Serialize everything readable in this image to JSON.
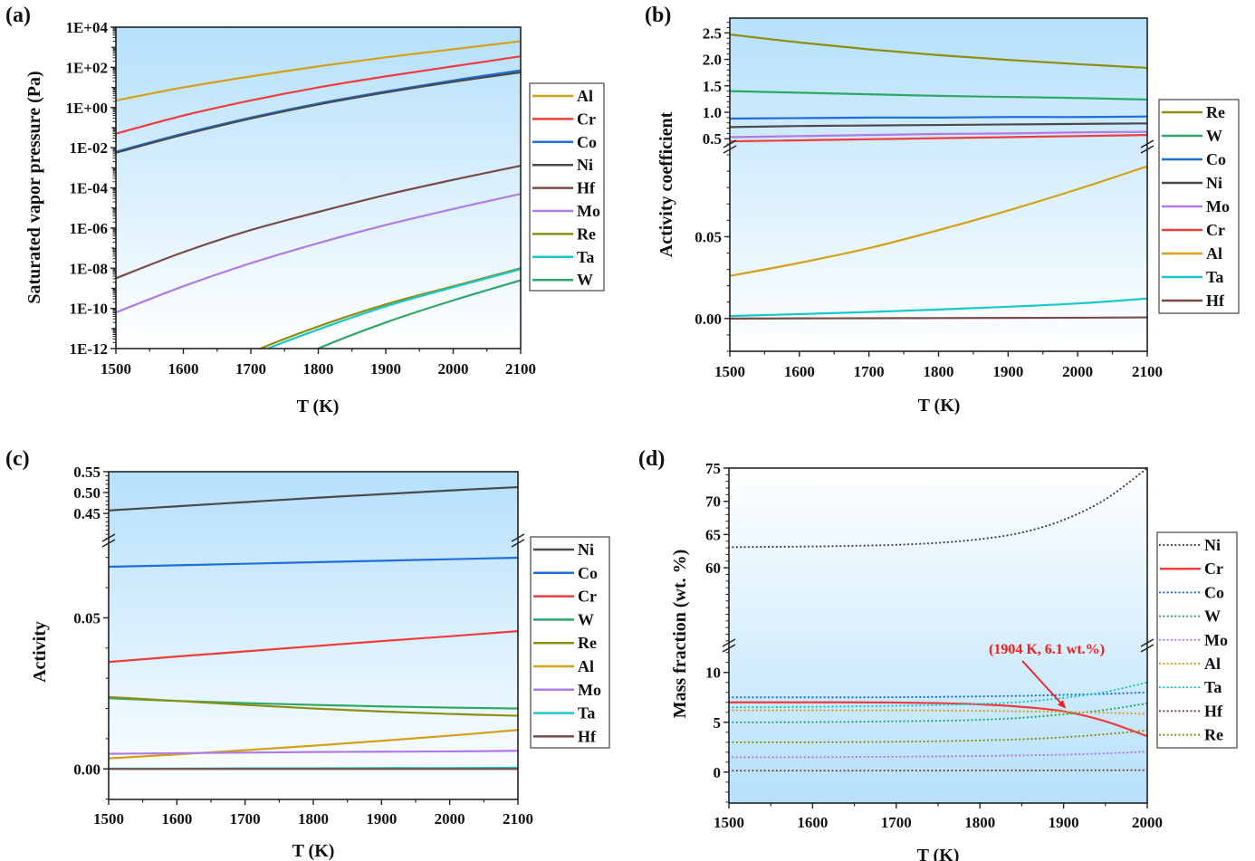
{
  "chart_data": [
    {
      "panel": "(a)",
      "type": "line",
      "title": "",
      "xlabel": "T (K)",
      "ylabel": "Saturated vapor pressure (Pa)",
      "yscale": "log",
      "xlim": [
        1500,
        2100
      ],
      "ylim": [
        1e-12,
        10000.0
      ],
      "xticks": [
        1500,
        1600,
        1700,
        1800,
        1900,
        2000,
        2100
      ],
      "yticks": [
        {
          "value": 10000.0,
          "label": "1E+04"
        },
        {
          "value": 100.0,
          "label": "1E+02"
        },
        {
          "value": 1,
          "label": "1E+00"
        },
        {
          "value": 0.01,
          "label": "1E-02"
        },
        {
          "value": 0.0001,
          "label": "1E-04"
        },
        {
          "value": 1e-06,
          "label": "1E-06"
        },
        {
          "value": 1e-08,
          "label": "1E-08"
        },
        {
          "value": 1e-10,
          "label": "1E-10"
        },
        {
          "value": 1e-12,
          "label": "1E-12"
        }
      ],
      "legend_position": "right",
      "x": [
        1500,
        1600,
        1700,
        1800,
        1900,
        2000,
        2100
      ],
      "series": [
        {
          "name": "Al",
          "color": "#D4A017",
          "style": "solid",
          "log10": [
            0.35,
            1.0,
            1.55,
            2.05,
            2.5,
            2.9,
            3.3
          ]
        },
        {
          "name": "Cr",
          "color": "#F03C3C",
          "style": "solid",
          "log10": [
            -1.3,
            -0.4,
            0.35,
            1.0,
            1.55,
            2.05,
            2.55
          ]
        },
        {
          "name": "Co",
          "color": "#1E6FDB",
          "style": "solid",
          "log10": [
            -2.2,
            -1.3,
            -0.5,
            0.2,
            0.8,
            1.35,
            1.85
          ]
        },
        {
          "name": "Ni",
          "color": "#4A4A4A",
          "style": "solid",
          "log10": [
            -2.25,
            -1.35,
            -0.55,
            0.15,
            0.75,
            1.28,
            1.75
          ]
        },
        {
          "name": "Hf",
          "color": "#7A4B46",
          "style": "solid",
          "log10": [
            -8.5,
            -7.2,
            -6.1,
            -5.2,
            -4.35,
            -3.6,
            -2.9
          ]
        },
        {
          "name": "Mo",
          "color": "#B07BE8",
          "style": "solid",
          "log10": [
            -10.2,
            -8.9,
            -7.75,
            -6.75,
            -5.85,
            -5.05,
            -4.3
          ]
        },
        {
          "name": "Re",
          "color": "#8E8E12",
          "style": "solid",
          "log10": [
            -15.6,
            -13.8,
            -12.2,
            -10.9,
            -9.8,
            -8.9,
            -8.0
          ]
        },
        {
          "name": "Ta",
          "color": "#17C8CC",
          "style": "solid",
          "log10": [
            -15.8,
            -14.0,
            -12.35,
            -11.05,
            -9.9,
            -8.95,
            -8.05
          ]
        },
        {
          "name": "W",
          "color": "#2EA868",
          "style": "solid",
          "log10": [
            -17.5,
            -15.4,
            -13.6,
            -12.0,
            -10.7,
            -9.6,
            -8.6
          ]
        }
      ]
    },
    {
      "panel": "(b)",
      "type": "line",
      "title": "",
      "xlabel": "T (K)",
      "ylabel": "Activity coefficient",
      "xlim": [
        1500,
        2100
      ],
      "axis_break": true,
      "ylim_upper": [
        0.35,
        2.78
      ],
      "ylim_lower": [
        -0.02,
        0.105
      ],
      "yticks_upper": [
        "0.5",
        "1.0",
        "1.5",
        "2.0",
        "2.5"
      ],
      "yticks_lower": [
        "0.00",
        "0.05"
      ],
      "xticks": [
        1500,
        1600,
        1700,
        1800,
        1900,
        2000,
        2100
      ],
      "legend_position": "right",
      "x": [
        1500,
        1600,
        1700,
        1800,
        1900,
        2000,
        2100
      ],
      "series": [
        {
          "name": "Re",
          "color": "#8E8E12",
          "style": "solid",
          "segment": "upper",
          "values": [
            2.47,
            2.32,
            2.19,
            2.08,
            1.99,
            1.91,
            1.84
          ]
        },
        {
          "name": "W",
          "color": "#2EA868",
          "style": "solid",
          "segment": "upper",
          "values": [
            1.4,
            1.37,
            1.34,
            1.31,
            1.29,
            1.27,
            1.24
          ]
        },
        {
          "name": "Co",
          "color": "#1E6FDB",
          "style": "solid",
          "segment": "upper",
          "values": [
            0.88,
            0.89,
            0.9,
            0.9,
            0.91,
            0.91,
            0.92
          ]
        },
        {
          "name": "Ni",
          "color": "#4A4A4A",
          "style": "solid",
          "segment": "upper",
          "values": [
            0.72,
            0.74,
            0.75,
            0.76,
            0.77,
            0.78,
            0.79
          ]
        },
        {
          "name": "Mo",
          "color": "#B07BE8",
          "style": "solid",
          "segment": "upper",
          "values": [
            0.53,
            0.55,
            0.57,
            0.59,
            0.6,
            0.62,
            0.63
          ]
        },
        {
          "name": "Cr",
          "color": "#F03C3C",
          "style": "solid",
          "segment": "upper",
          "values": [
            0.45,
            0.47,
            0.49,
            0.51,
            0.53,
            0.55,
            0.57
          ]
        },
        {
          "name": "Al",
          "color": "#D4A017",
          "style": "solid",
          "segment": "lower",
          "values": [
            0.026,
            0.034,
            0.043,
            0.054,
            0.066,
            0.079,
            0.093
          ]
        },
        {
          "name": "Ta",
          "color": "#17C8CC",
          "style": "solid",
          "segment": "lower",
          "values": [
            0.0015,
            0.0027,
            0.004,
            0.0055,
            0.0072,
            0.0092,
            0.0122
          ]
        },
        {
          "name": "Hf",
          "color": "#7A4B46",
          "style": "solid",
          "segment": "lower",
          "values": [
            0.0,
            0.0001,
            0.0002,
            0.0003,
            0.0004,
            0.0005,
            0.0007
          ]
        }
      ]
    },
    {
      "panel": "(c)",
      "type": "line",
      "title": "",
      "xlabel": "T (K)",
      "ylabel": "Activity",
      "xlim": [
        1500,
        2100
      ],
      "axis_break": true,
      "ylim_upper": [
        0.385,
        0.55
      ],
      "ylim_lower": [
        -0.0101,
        0.0756
      ],
      "yticks_upper": [
        "0.45",
        "0.50",
        "0.55"
      ],
      "yticks_lower": [
        "0.00",
        "0.05"
      ],
      "xticks": [
        1500,
        1600,
        1700,
        1800,
        1900,
        2000,
        2100
      ],
      "legend_position": "right",
      "x": [
        1500,
        1600,
        1700,
        1800,
        1900,
        2000,
        2100
      ],
      "series": [
        {
          "name": "Ni",
          "color": "#4A4A4A",
          "style": "solid",
          "segment": "upper",
          "values": [
            0.457,
            0.467,
            0.477,
            0.487,
            0.496,
            0.505,
            0.513
          ]
        },
        {
          "name": "Co",
          "color": "#1E6FDB",
          "style": "solid",
          "segment": "lower",
          "values": [
            0.0669,
            0.0674,
            0.0679,
            0.0684,
            0.0689,
            0.0694,
            0.0699
          ]
        },
        {
          "name": "Cr",
          "color": "#F03C3C",
          "style": "solid",
          "segment": "lower",
          "values": [
            0.0354,
            0.0372,
            0.0389,
            0.0406,
            0.0423,
            0.0439,
            0.0456
          ]
        },
        {
          "name": "W",
          "color": "#2EA868",
          "style": "solid",
          "segment": "lower",
          "values": [
            0.0234,
            0.0225,
            0.0218,
            0.0212,
            0.0207,
            0.0203,
            0.02
          ]
        },
        {
          "name": "Re",
          "color": "#8E8E12",
          "style": "solid",
          "segment": "lower",
          "values": [
            0.0238,
            0.0225,
            0.0212,
            0.02,
            0.019,
            0.0182,
            0.0176
          ]
        },
        {
          "name": "Al",
          "color": "#D4A017",
          "style": "solid",
          "segment": "lower",
          "values": [
            0.0035,
            0.0048,
            0.0062,
            0.0077,
            0.0093,
            0.011,
            0.0129
          ]
        },
        {
          "name": "Mo",
          "color": "#B07BE8",
          "style": "solid",
          "segment": "lower",
          "values": [
            0.005,
            0.0052,
            0.0054,
            0.0056,
            0.0057,
            0.0058,
            0.006
          ]
        },
        {
          "name": "Ta",
          "color": "#17C8CC",
          "style": "solid",
          "segment": "lower",
          "values": [
            0.0001,
            0.0001,
            0.0002,
            0.0002,
            0.0003,
            0.0003,
            0.0004
          ]
        },
        {
          "name": "Hf",
          "color": "#7A4B46",
          "style": "solid",
          "segment": "lower",
          "values": [
            0.0,
            0.0,
            0.0,
            0.0,
            0.0,
            0.0,
            0.0
          ]
        }
      ]
    },
    {
      "panel": "(d)",
      "type": "line",
      "title": "",
      "xlabel": "T (K)",
      "ylabel": "Mass fraction (wt. %)",
      "xlim": [
        1500,
        2000
      ],
      "axis_break": true,
      "ylim_upper": [
        48.3,
        75
      ],
      "ylim_lower": [
        -3.1,
        12.7
      ],
      "yticks_upper": [
        "60",
        "65",
        "70",
        "75"
      ],
      "yticks_lower": [
        "0",
        "5",
        "10"
      ],
      "xticks": [
        1500,
        1600,
        1700,
        1800,
        1900,
        2000
      ],
      "legend_position": "right",
      "annotation": {
        "text": "(1904 K,  6.1 wt.%)",
        "x": 1904,
        "y": 6.1,
        "color": "#F01E1E"
      },
      "x": [
        1500,
        1550,
        1600,
        1650,
        1700,
        1750,
        1800,
        1850,
        1900,
        1950,
        2000
      ],
      "series": [
        {
          "name": "Ni",
          "color": "#4A4A4A",
          "style": "dotted",
          "segment": "upper",
          "values": [
            63.1,
            63.15,
            63.2,
            63.3,
            63.45,
            63.75,
            64.3,
            65.3,
            67.2,
            70.3,
            75.0
          ]
        },
        {
          "name": "Cr",
          "color": "#F03C3C",
          "style": "solid",
          "segment": "lower",
          "values": [
            7.0,
            7.0,
            7.0,
            7.0,
            6.98,
            6.92,
            6.8,
            6.55,
            6.1,
            5.1,
            3.6
          ]
        },
        {
          "name": "Co",
          "color": "#1E6FDB",
          "style": "dotted",
          "segment": "lower",
          "values": [
            7.5,
            7.5,
            7.5,
            7.5,
            7.52,
            7.55,
            7.6,
            7.65,
            7.75,
            7.85,
            8.0
          ]
        },
        {
          "name": "W",
          "color": "#2EA868",
          "style": "dotted",
          "segment": "lower",
          "values": [
            5.0,
            5.0,
            5.02,
            5.05,
            5.1,
            5.15,
            5.25,
            5.45,
            5.8,
            6.25,
            6.9
          ]
        },
        {
          "name": "Mo",
          "color": "#B07BE8",
          "style": "dotted",
          "segment": "lower",
          "values": [
            1.5,
            1.5,
            1.5,
            1.52,
            1.55,
            1.58,
            1.62,
            1.68,
            1.75,
            1.88,
            2.05
          ]
        },
        {
          "name": "Al",
          "color": "#D4A017",
          "style": "dotted",
          "segment": "lower",
          "values": [
            6.2,
            6.2,
            6.2,
            6.2,
            6.2,
            6.18,
            6.15,
            6.1,
            6.05,
            5.95,
            5.85
          ]
        },
        {
          "name": "Ta",
          "color": "#17C8CC",
          "style": "dotted",
          "segment": "lower",
          "values": [
            6.5,
            6.52,
            6.55,
            6.6,
            6.65,
            6.72,
            6.85,
            7.05,
            7.45,
            8.05,
            9.0
          ]
        },
        {
          "name": "Hf",
          "color": "#7A4B46",
          "style": "dotted",
          "segment": "lower",
          "values": [
            0.15,
            0.15,
            0.15,
            0.15,
            0.16,
            0.16,
            0.17,
            0.17,
            0.18,
            0.19,
            0.2
          ]
        },
        {
          "name": "Re",
          "color": "#8E8E12",
          "style": "dotted",
          "segment": "lower",
          "values": [
            3.0,
            3.0,
            3.0,
            3.02,
            3.05,
            3.1,
            3.18,
            3.3,
            3.5,
            3.8,
            4.2
          ]
        }
      ]
    }
  ]
}
